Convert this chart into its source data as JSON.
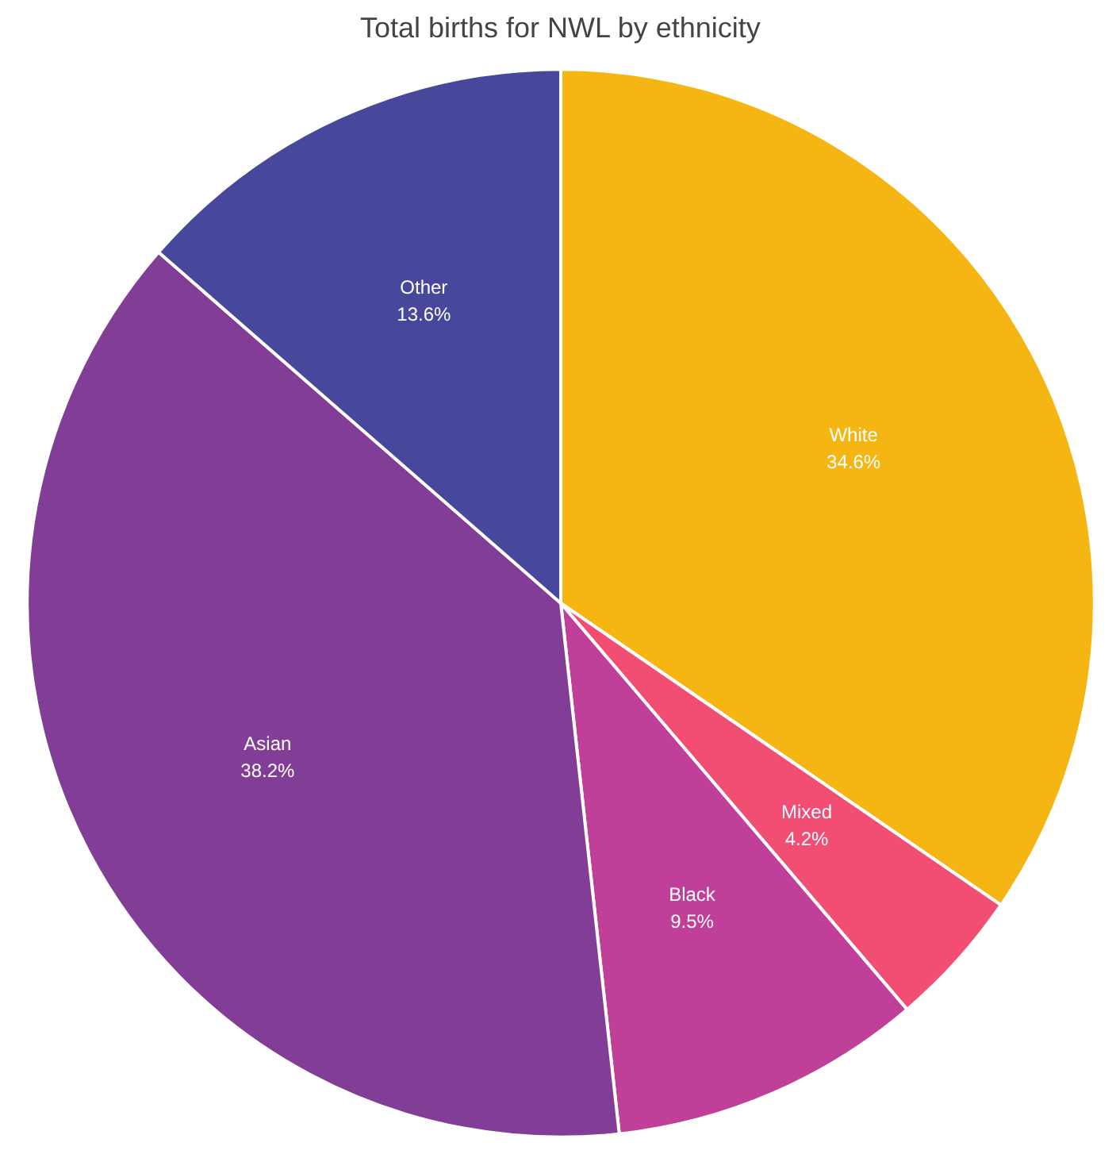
{
  "chart_data": {
    "type": "pie",
    "title": "Total births for NWL by ethnicity",
    "categories": [
      "White",
      "Mixed",
      "Black",
      "Asian",
      "Other"
    ],
    "values": [
      34.6,
      4.2,
      9.5,
      38.2,
      13.6
    ],
    "value_labels": [
      "34.6%",
      "4.2%",
      "9.5%",
      "38.2%",
      "13.6%"
    ],
    "colors": [
      "#f5b614",
      "#f24e74",
      "#bf3f99",
      "#823e97",
      "#47479b"
    ]
  }
}
